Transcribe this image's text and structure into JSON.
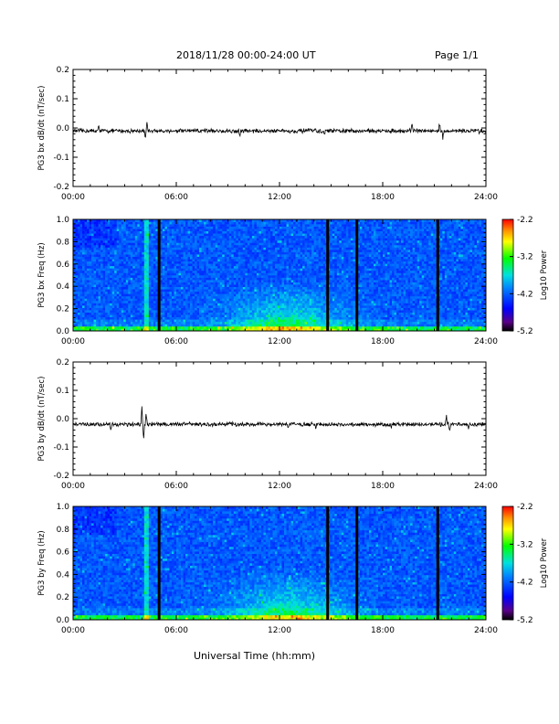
{
  "header": {
    "title": "2018/11/28  00:00-24:00 UT",
    "page": "Page 1/1"
  },
  "x_axis_title": "Universal Time (hh:mm)",
  "chart_data": [
    {
      "type": "line",
      "ylabel": "PG3 bx dB/dt (nT/sec)",
      "xlim": [
        0,
        24
      ],
      "ylim": [
        -0.2,
        0.2
      ],
      "xticks": [
        "00:00",
        "06:00",
        "12:00",
        "18:00",
        "24:00"
      ],
      "yticks": [
        "-0.2",
        "-0.1",
        "0.0",
        "0.1",
        "0.2"
      ],
      "baseline": -0.01,
      "noise_amplitude": 0.006,
      "spikes": [
        {
          "x": 1.5,
          "y": 0.015
        },
        {
          "x": 4.2,
          "y": -0.045
        },
        {
          "x": 4.3,
          "y": 0.02
        },
        {
          "x": 9.7,
          "y": -0.03
        },
        {
          "x": 14.6,
          "y": -0.03
        },
        {
          "x": 19.7,
          "y": 0.02
        },
        {
          "x": 21.3,
          "y": 0.02
        },
        {
          "x": 21.5,
          "y": -0.04
        },
        {
          "x": 23.6,
          "y": -0.02
        }
      ]
    },
    {
      "type": "heatmap",
      "ylabel": "PG3 bx Freq (Hz)",
      "xlim": [
        0,
        24
      ],
      "ylim": [
        0,
        1
      ],
      "xticks": [
        "00:00",
        "06:00",
        "12:00",
        "18:00",
        "24:00"
      ],
      "yticks": [
        "0.0",
        "0.2",
        "0.4",
        "0.6",
        "0.8",
        "1.0"
      ],
      "colorbar": {
        "label": "Log10 Power",
        "min": -5.2,
        "max": -2.2,
        "ticks": [
          "-2.2",
          "-3.2",
          "-4.2",
          "-5.2"
        ]
      },
      "gaps_hours": [
        5.0,
        14.8,
        16.5,
        21.2
      ]
    },
    {
      "type": "line",
      "ylabel": "PG3 by dB/dt (nT/sec)",
      "xlim": [
        0,
        24
      ],
      "ylim": [
        -0.2,
        0.2
      ],
      "xticks": [
        "00:00",
        "06:00",
        "12:00",
        "18:00",
        "24:00"
      ],
      "yticks": [
        "-0.2",
        "-0.1",
        "0.0",
        "0.1",
        "0.2"
      ],
      "baseline": -0.02,
      "noise_amplitude": 0.006,
      "spikes": [
        {
          "x": 2.2,
          "y": -0.04
        },
        {
          "x": 4.0,
          "y": 0.05
        },
        {
          "x": 4.1,
          "y": -0.08
        },
        {
          "x": 4.25,
          "y": 0.03
        },
        {
          "x": 9.5,
          "y": -0.035
        },
        {
          "x": 12.5,
          "y": -0.035
        },
        {
          "x": 14.1,
          "y": -0.04
        },
        {
          "x": 18.5,
          "y": -0.035
        },
        {
          "x": 21.7,
          "y": 0.02
        },
        {
          "x": 21.9,
          "y": -0.05
        },
        {
          "x": 23.0,
          "y": -0.04
        }
      ]
    },
    {
      "type": "heatmap",
      "ylabel": "PG3 by Freq (Hz)",
      "xlim": [
        0,
        24
      ],
      "ylim": [
        0,
        1
      ],
      "xticks": [
        "00:00",
        "06:00",
        "12:00",
        "18:00",
        "24:00"
      ],
      "yticks": [
        "0.0",
        "0.2",
        "0.4",
        "0.6",
        "0.8",
        "1.0"
      ],
      "colorbar": {
        "label": "Log10 Power",
        "min": -5.2,
        "max": -2.2,
        "ticks": [
          "-2.2",
          "-3.2",
          "-4.2",
          "-5.2"
        ]
      },
      "gaps_hours": [
        5.0,
        14.8,
        16.5,
        21.2
      ]
    }
  ]
}
